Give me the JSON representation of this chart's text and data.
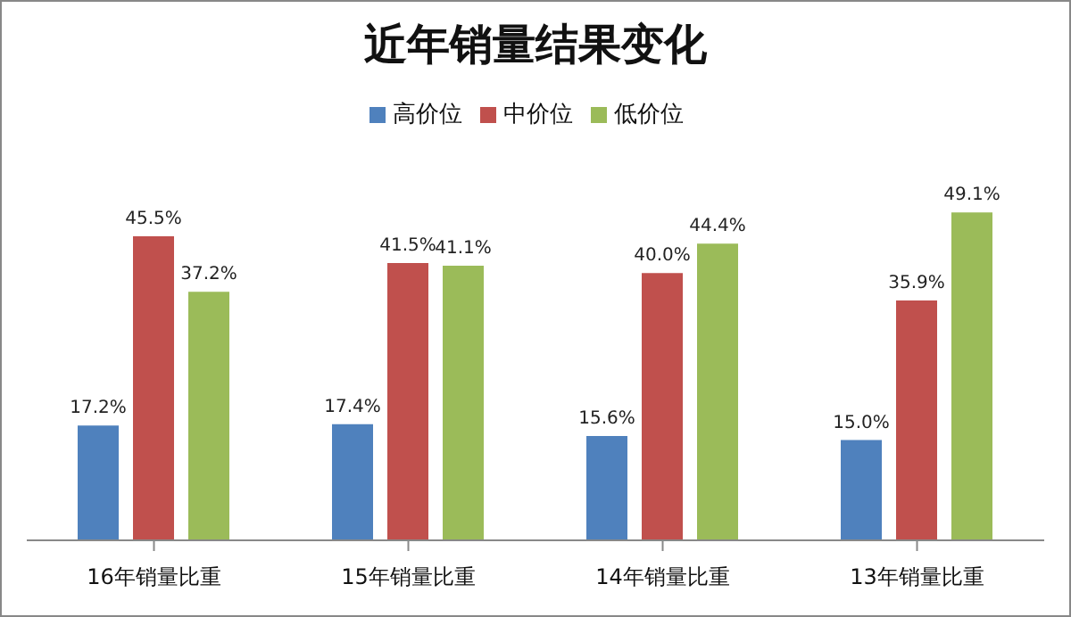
{
  "chart_data": {
    "type": "bar",
    "title": "近年销量结果变化",
    "categories": [
      "16年销量比重",
      "15年销量比重",
      "14年销量比重",
      "13年销量比重"
    ],
    "series": [
      {
        "name": "高价位",
        "color": "#4f81bd",
        "values": [
          17.2,
          17.4,
          15.6,
          15.0
        ],
        "value_labels": [
          "17.2%",
          "17.4%",
          "15.6%",
          "15.0%"
        ]
      },
      {
        "name": "中价位",
        "color": "#c0504d",
        "values": [
          45.5,
          41.5,
          40.0,
          35.9
        ],
        "value_labels": [
          "45.5%",
          "41.5%",
          "40.0%",
          "35.9%"
        ]
      },
      {
        "name": "低价位",
        "color": "#9bbb59",
        "values": [
          37.2,
          41.1,
          44.4,
          49.1
        ],
        "value_labels": [
          "37.2%",
          "41.1%",
          "44.4%",
          "49.1%"
        ]
      }
    ],
    "legend": "top",
    "grid": false
  }
}
